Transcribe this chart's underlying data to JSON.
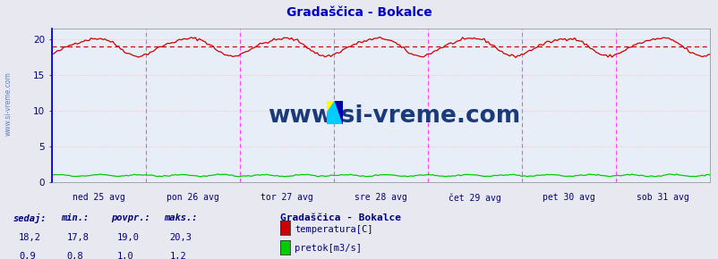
{
  "title": "Gradaščica - Bokalce",
  "title_color": "#0000cc",
  "bg_color": "#e8e8f0",
  "plot_bg_color": "#e8eef8",
  "grid_color": "#ffaaaa",
  "xlabel_color": "#000080",
  "x_tick_labels": [
    "ned 25 avg",
    "pon 26 avg",
    "tor 27 avg",
    "sre 28 avg",
    "čet 29 avg",
    "pet 30 avg",
    "sob 31 avg"
  ],
  "y_ticks": [
    0,
    5,
    10,
    15,
    20
  ],
  "y_lim": [
    0,
    21.5
  ],
  "n_points": 336,
  "temp_color": "#cc0000",
  "temp_avg": 19.0,
  "temp_min": 17.8,
  "temp_max": 20.3,
  "flow_color": "#00cc00",
  "flow_avg": 1.0,
  "flow_min": 0.8,
  "flow_max": 1.2,
  "vline_color": "#ff44ff",
  "vline_start_color": "#0000cc",
  "watermark": "www.si-vreme.com",
  "watermark_color": "#1a3a7a",
  "left_label": "www.si-vreme.com",
  "stat_labels": [
    "sedaj:",
    "min.:",
    "povpr.:",
    "maks.:"
  ],
  "stat_temp": [
    "18,2",
    "17,8",
    "19,0",
    "20,3"
  ],
  "stat_flow": [
    "0,9",
    "0,8",
    "1,0",
    "1,2"
  ],
  "legend_title": "Gradaščica - Bokalce",
  "legend_items": [
    "temperatura[C]",
    "pretok[m3/s]"
  ],
  "legend_colors": [
    "#cc0000",
    "#00cc00"
  ]
}
